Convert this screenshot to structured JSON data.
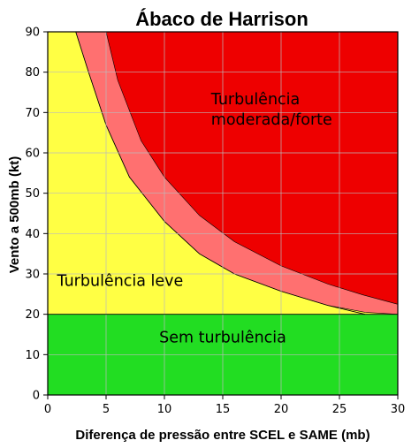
{
  "chart_data": {
    "type": "area",
    "title": "Ábaco de Harrison",
    "xlabel": "Diferença de pressão entre SCEL e SAME (mb)",
    "ylabel": "Vento a 500mb (kt)",
    "xlim": [
      0,
      30
    ],
    "ylim": [
      0,
      90
    ],
    "x_ticks": [
      0,
      5,
      10,
      15,
      20,
      25,
      30
    ],
    "y_ticks": [
      0,
      10,
      20,
      30,
      40,
      50,
      60,
      70,
      80,
      90
    ],
    "grid": true,
    "regions": [
      {
        "label": "Sem turbulência",
        "color": "#22dd22",
        "y_range": [
          0,
          20
        ]
      },
      {
        "label": "Turbulência leve",
        "color": "#ffff44",
        "lower_curve": {
          "x": [
            0.3,
            2.4,
            3.5,
            5,
            7,
            10,
            13,
            16,
            20,
            24,
            27.2
          ],
          "y": [
            90,
            90,
            80,
            66.9,
            54,
            43,
            35,
            30,
            25.7,
            22.2,
            20
          ]
        }
      },
      {
        "label": "",
        "color": "#ff7070",
        "lower_curve": {
          "x": [
            5,
            7,
            10,
            13,
            16,
            20,
            24,
            27.2
          ],
          "y": [
            90,
            70,
            55,
            45,
            38,
            32,
            28,
            25.7
          ]
        }
      },
      {
        "label": "Turbulência moderada/forte",
        "label_lines": [
          "Turbulência",
          "moderada/forte"
        ],
        "color": "#ee0000",
        "lower_curve": {
          "x": [
            5,
            6,
            8,
            10,
            13,
            16,
            20,
            24,
            27,
            30
          ],
          "y": [
            90,
            78,
            63,
            54,
            44.5,
            38,
            32,
            27.5,
            24.8,
            22.5
          ]
        }
      }
    ],
    "boundaries": {
      "yellow_outer": {
        "x": [
          0.3,
          2.4,
          3.5,
          5,
          7,
          10,
          13,
          16,
          20,
          24,
          27.2
        ],
        "y": [
          90,
          90,
          80,
          66.9,
          54,
          43,
          35,
          30,
          25.7,
          22.2,
          20
        ]
      },
      "yellow_inner": {
        "x": [
          2.4,
          3.5,
          5,
          7,
          10,
          13,
          16,
          20,
          24,
          27.2,
          30
        ],
        "y": [
          90,
          80,
          66.9,
          54,
          43,
          35,
          30,
          25.7,
          22.2,
          20.5,
          20
        ]
      },
      "red_inner": {
        "x": [
          5,
          6,
          8,
          10,
          13,
          16,
          20,
          24,
          27,
          30
        ],
        "y": [
          90,
          78,
          63,
          54,
          44.5,
          38,
          32,
          27.5,
          24.8,
          22.5
        ]
      }
    },
    "colors": {
      "green": "#22dd22",
      "yellow": "#ffff44",
      "band": "#ff7070",
      "red": "#ee0000",
      "grid": "#bbbbbb",
      "axis": "#000000"
    }
  }
}
